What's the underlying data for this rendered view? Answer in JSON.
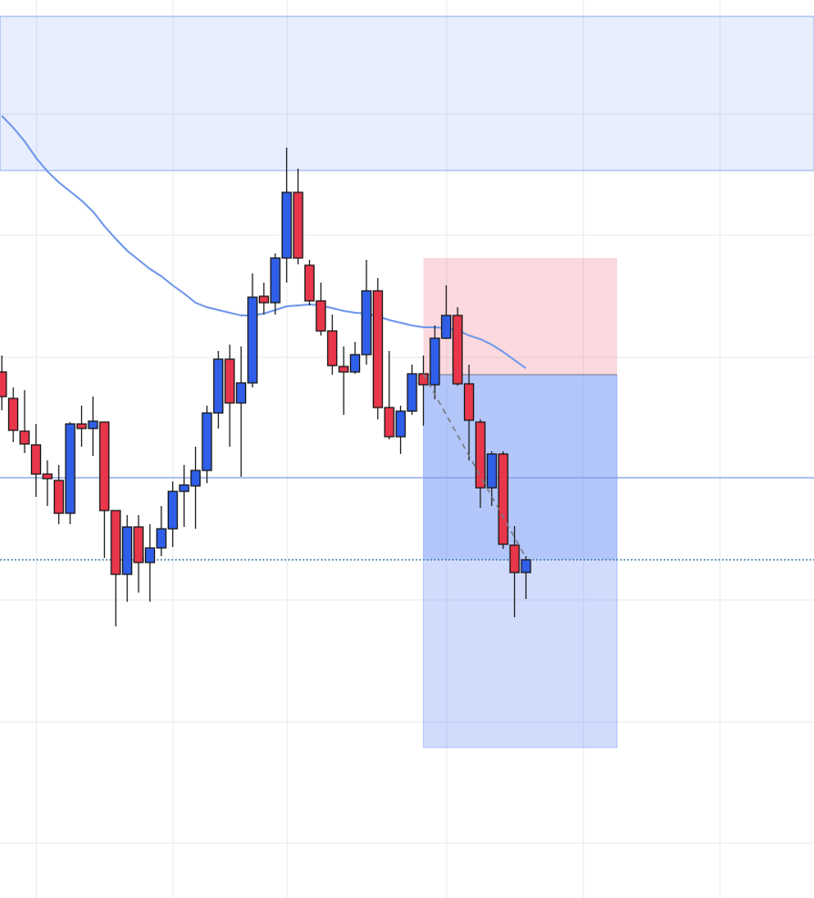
{
  "chart_data": {
    "type": "candlestick",
    "ylim": [
      0,
      98.5
    ],
    "up_color": "#2f5fe8",
    "down_color": "#e8364a",
    "line_color": "#6f97ea",
    "open": [
      57.7,
      54.8,
      51.2,
      49.7,
      46.5,
      45.8,
      42.2,
      52.0,
      51.5,
      52.2,
      42.5,
      35.5,
      40.7,
      36.8,
      38.4,
      40.5,
      44.6,
      45.2,
      46.9,
      53.2,
      59.1,
      54.3,
      56.5,
      66.0,
      65.3,
      70.2,
      77.4,
      69.4,
      65.5,
      62.2,
      58.3,
      57.7,
      59.6,
      66.6,
      53.8,
      50.6,
      53.4,
      57.5,
      56.3,
      61.4,
      63.9,
      56.4,
      52.2,
      45.0,
      48.7,
      38.7,
      35.7
    ],
    "high": [
      59.5,
      56.0,
      55.7,
      52.0,
      48.0,
      47.5,
      52.2,
      54.0,
      55.0,
      52.2,
      42.5,
      42.0,
      42.0,
      41.0,
      43.0,
      45.7,
      47.5,
      49.5,
      54.0,
      60.0,
      60.7,
      60.5,
      68.5,
      67.5,
      70.7,
      82.3,
      80.0,
      70.0,
      67.5,
      64.0,
      60.5,
      61.0,
      70.0,
      68.0,
      60.0,
      54.0,
      58.5,
      59.5,
      62.8,
      67.2,
      64.8,
      58.5,
      52.5,
      49.0,
      49.0,
      40.8,
      37.5
    ],
    "low": [
      53.5,
      50.0,
      48.8,
      44.0,
      43.0,
      41.0,
      41.0,
      49.5,
      48.5,
      37.3,
      29.8,
      32.5,
      33.5,
      32.5,
      37.5,
      38.5,
      40.7,
      40.5,
      45.5,
      51.5,
      49.5,
      46.2,
      56.0,
      64.0,
      64.0,
      67.5,
      69.5,
      65.0,
      61.7,
      57.4,
      53.0,
      57.5,
      58.5,
      52.5,
      50.3,
      48.7,
      53.0,
      51.8,
      54.7,
      61.3,
      56.2,
      48.0,
      42.8,
      43.0,
      38.3,
      30.8,
      32.8
    ],
    "close": [
      55.0,
      51.3,
      49.8,
      46.5,
      46.0,
      42.2,
      52.0,
      51.5,
      52.3,
      42.5,
      35.5,
      40.7,
      36.8,
      38.4,
      40.5,
      44.6,
      45.3,
      46.9,
      53.2,
      59.1,
      54.3,
      56.5,
      65.9,
      65.3,
      70.2,
      77.4,
      70.2,
      65.5,
      62.2,
      58.4,
      57.7,
      59.6,
      66.6,
      53.8,
      50.6,
      53.4,
      57.5,
      56.3,
      61.4,
      63.9,
      56.4,
      52.4,
      45.0,
      48.7,
      38.8,
      35.7,
      37.1
    ],
    "moving_average": [
      85.8,
      84.5,
      83.0,
      81.2,
      79.7,
      78.5,
      77.5,
      76.5,
      75.3,
      73.7,
      72.3,
      71.0,
      70.0,
      69.0,
      68.2,
      67.2,
      66.3,
      65.3,
      64.8,
      64.5,
      64.2,
      63.9,
      63.9,
      64.1,
      64.5,
      64.9,
      65.0,
      65.1,
      65.0,
      64.7,
      64.4,
      64.2,
      64.1,
      63.8,
      63.4,
      63.1,
      62.8,
      62.6,
      62.6,
      62.5,
      62.3,
      61.7,
      61.3,
      60.7,
      59.9,
      59.0,
      58.1
    ],
    "resistance_zone": [
      79.8,
      96.7
    ],
    "hline": 46.1,
    "price_line": 37.1,
    "position": {
      "x": [
        37,
        54
      ],
      "stop": 70.2,
      "entry": 57.4,
      "target": 16.5
    },
    "projection": {
      "x": [
        37,
        46
      ],
      "y": [
        57.5,
        37.3
      ]
    }
  }
}
